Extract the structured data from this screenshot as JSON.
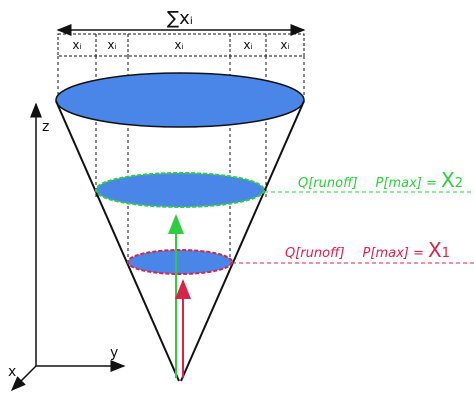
{
  "header": {
    "sum_label": "∑xᵢ"
  },
  "top_segments": [
    "xᵢ",
    "xᵢ",
    "xᵢ",
    "xᵢ",
    "xᵢ"
  ],
  "axes": {
    "z": "z",
    "y": "y",
    "x": "x"
  },
  "levels": [
    {
      "id": "level-2",
      "q": "Q[runoff]",
      "p": "P[max]",
      "eq": " = ",
      "var": "X",
      "sub": "2",
      "color": "#2ecc40"
    },
    {
      "id": "level-1",
      "q": "Q[runoff]",
      "p": "P[max]",
      "eq": " = ",
      "var": "X",
      "sub": "1",
      "color": "#d6244a"
    }
  ],
  "colors": {
    "fill": "#4a86e8",
    "stroke": "#111111"
  }
}
